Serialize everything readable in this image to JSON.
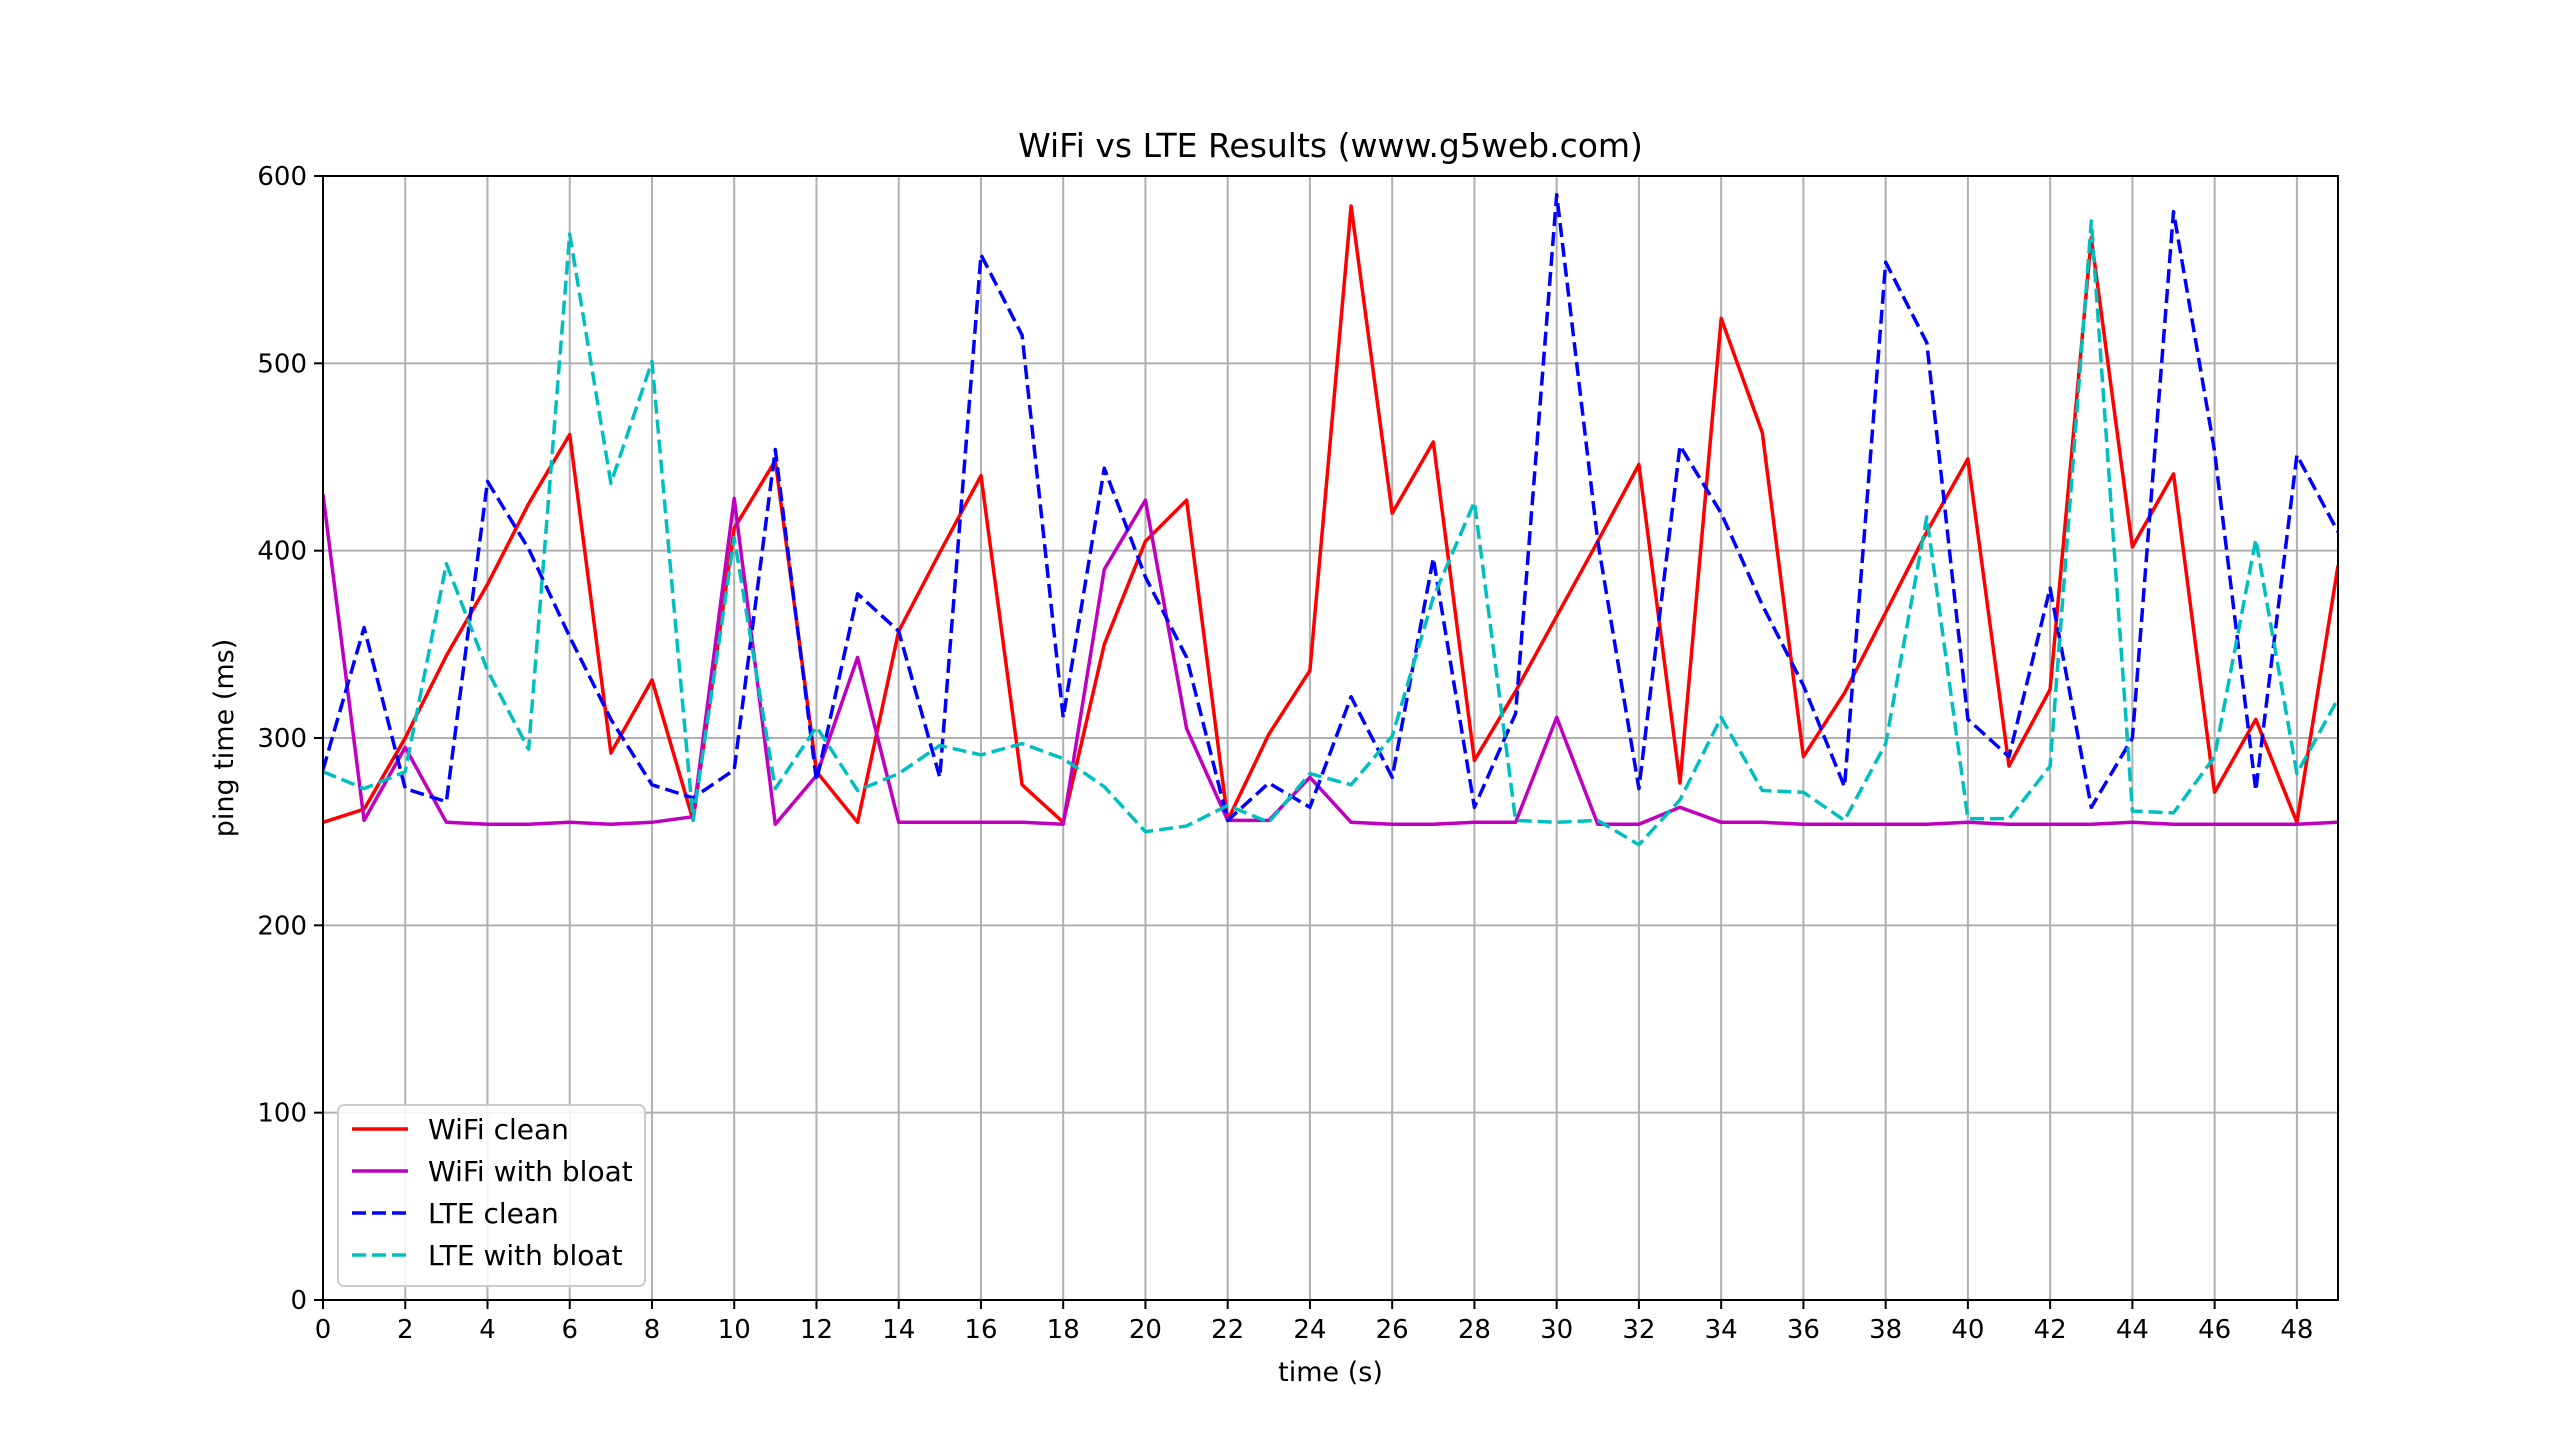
{
  "chart_data": {
    "type": "line",
    "title": "WiFi vs LTE Results (www.g5web.com)",
    "xlabel": "time (s)",
    "ylabel": "ping time (ms)",
    "xlim": [
      0,
      49
    ],
    "ylim": [
      0,
      600
    ],
    "xticks": [
      0,
      2,
      4,
      6,
      8,
      10,
      12,
      14,
      16,
      18,
      20,
      22,
      24,
      26,
      28,
      30,
      32,
      34,
      36,
      38,
      40,
      42,
      44,
      46,
      48
    ],
    "yticks": [
      0,
      100,
      200,
      300,
      400,
      500,
      600
    ],
    "grid": true,
    "legend_position": "lower-left",
    "x": [
      0,
      1,
      2,
      3,
      4,
      5,
      6,
      7,
      8,
      9,
      10,
      11,
      12,
      13,
      14,
      15,
      16,
      17,
      18,
      19,
      20,
      21,
      22,
      23,
      24,
      25,
      26,
      27,
      28,
      29,
      30,
      31,
      32,
      33,
      34,
      35,
      36,
      37,
      38,
      39,
      40,
      41,
      42,
      43,
      44,
      45,
      46,
      47,
      48,
      49
    ],
    "series": [
      {
        "name": "WiFi clean",
        "color": "#ff0000",
        "style": "solid",
        "values": [
          255,
          262,
          300,
          344,
          382,
          425,
          462,
          292,
          331,
          256,
          412,
          448,
          282,
          255,
          357,
          399,
          440,
          275,
          255,
          350,
          405,
          427,
          256,
          302,
          336,
          584,
          420,
          458,
          288,
          325,
          365,
          405,
          446,
          276,
          524,
          463,
          290,
          324,
          367,
          410,
          449,
          285,
          326,
          567,
          402,
          441,
          271,
          310,
          255,
          392
        ]
      },
      {
        "name": "WiFi with bloat",
        "color": "#bf00bf",
        "style": "solid",
        "values": [
          430,
          256,
          295,
          255,
          254,
          254,
          255,
          254,
          255,
          258,
          428,
          254,
          280,
          343,
          255,
          255,
          255,
          255,
          254,
          390,
          427,
          305,
          256,
          256,
          279,
          255,
          254,
          254,
          255,
          255,
          311,
          254,
          254,
          263,
          255,
          255,
          254,
          254,
          254,
          254,
          255,
          254,
          254,
          254,
          255,
          254,
          254,
          254,
          254,
          255
        ]
      },
      {
        "name": "LTE clean",
        "color": "#0000ff",
        "style": "dashed",
        "values": [
          283,
          359,
          273,
          266,
          437,
          401,
          354,
          310,
          275,
          268,
          283,
          454,
          277,
          377,
          357,
          279,
          558,
          515,
          311,
          444,
          386,
          343,
          256,
          276,
          263,
          322,
          279,
          396,
          263,
          313,
          590,
          405,
          273,
          456,
          420,
          371,
          328,
          274,
          554,
          511,
          310,
          290,
          380,
          263,
          300,
          581,
          453,
          272,
          451,
          410
        ]
      },
      {
        "name": "LTE with bloat",
        "color": "#00bfbf",
        "style": "dashed",
        "values": [
          282,
          273,
          282,
          393,
          336,
          294,
          569,
          436,
          501,
          256,
          407,
          273,
          306,
          272,
          281,
          296,
          291,
          297,
          289,
          274,
          250,
          253,
          264,
          255,
          281,
          275,
          301,
          375,
          426,
          256,
          255,
          256,
          243,
          267,
          311,
          272,
          271,
          256,
          297,
          418,
          257,
          257,
          285,
          576,
          261,
          260,
          290,
          406,
          281,
          321
        ]
      }
    ]
  }
}
